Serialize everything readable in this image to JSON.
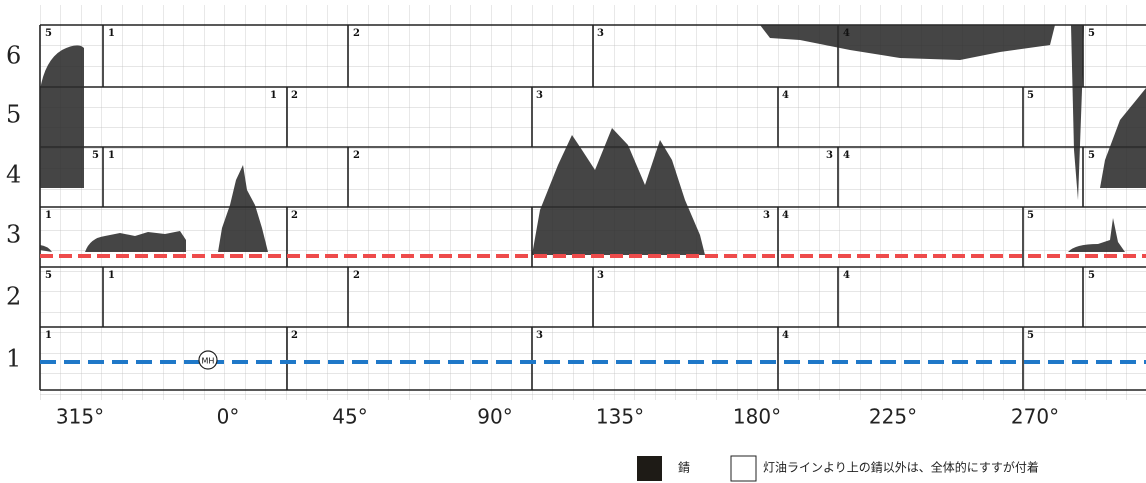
{
  "row_labels": [
    "6",
    "5",
    "4",
    "3",
    "2",
    "1"
  ],
  "angle_labels": [
    "315°",
    "0°",
    "45°",
    "90°",
    "135°",
    "180°",
    "225°",
    "270°"
  ],
  "plates": [
    [
      "5",
      "1",
      "2",
      "3",
      "4",
      "5"
    ],
    [
      "1",
      "2",
      "3",
      "4",
      "5"
    ],
    [
      "5",
      "1",
      "2",
      "3",
      "4",
      "5"
    ],
    [
      "1",
      "2",
      "3",
      "4",
      "5"
    ],
    [
      "5",
      "1",
      "2",
      "3",
      "4",
      "5"
    ],
    [
      "1",
      "2",
      "3",
      "4",
      "5"
    ]
  ],
  "manhole": "MH",
  "legend": [
    {
      "label": "錆"
    },
    {
      "label": "灯油ラインより上の錆以外は、全体的にすすが付着"
    }
  ]
}
